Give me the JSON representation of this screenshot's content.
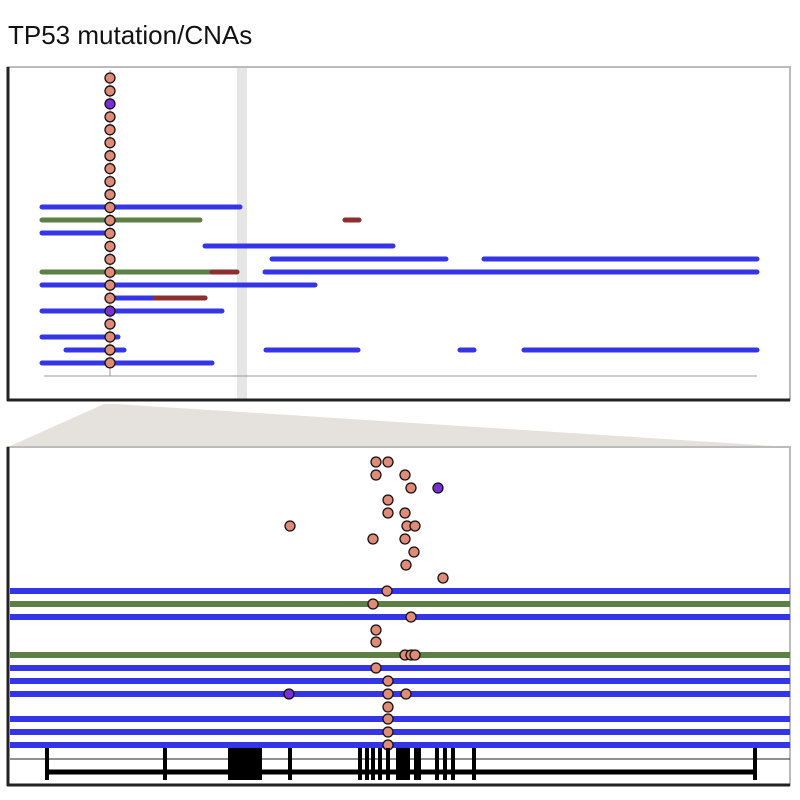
{
  "header": {
    "title": "TP53 mutation/CNAs"
  }
}
